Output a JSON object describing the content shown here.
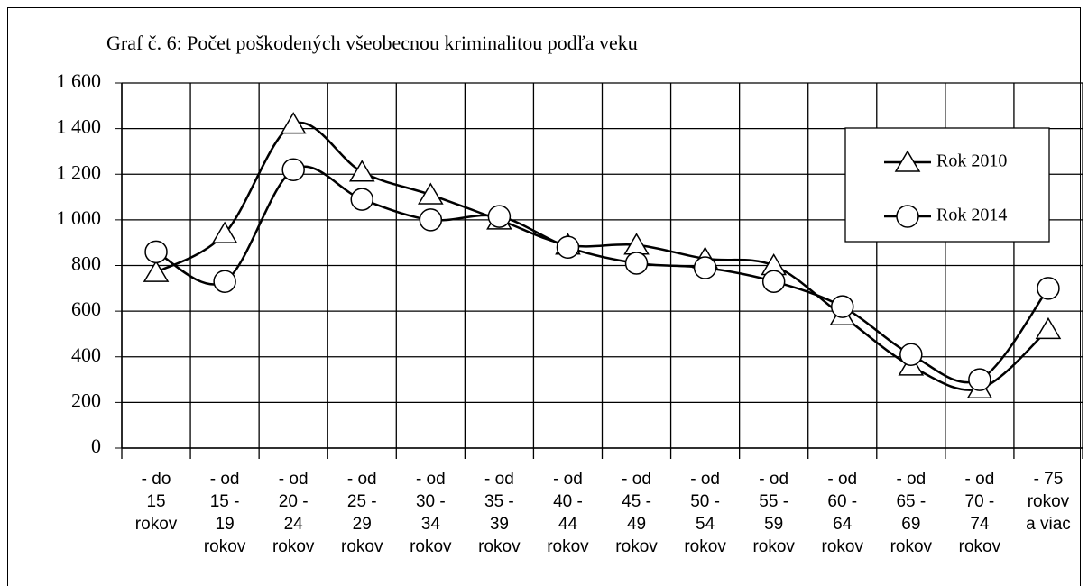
{
  "chart_data": {
    "type": "line",
    "title": "Graf č. 6: Počet poškodených všeobecnou  kriminalitou  podľa veku",
    "categories": [
      "- do\n15\nrokov",
      "- od\n15 -\n19\nrokov",
      "- od\n20 -\n24\nrokov",
      "- od\n25 -\n29\nrokov",
      "- od\n30 -\n34\nrokov",
      "- od\n35 -\n39\nrokov",
      "- od\n40 -\n44\nrokov",
      "- od\n45 -\n49\nrokov",
      "- od\n50 -\n54\nrokov",
      "- od\n55 -\n59\nrokov",
      "- od\n60 -\n64\nrokov",
      "- od\n65 -\n69\nrokov",
      "- od\n70 -\n74\nrokov",
      "- 75\nrokov\na viac"
    ],
    "series": [
      {
        "name": "Rok 2010",
        "color": "#000000",
        "marker": "triangle",
        "values": [
          770,
          940,
          1420,
          1210,
          1110,
          1000,
          890,
          890,
          830,
          800,
          580,
          360,
          260,
          520
        ]
      },
      {
        "name": "Rok 2014",
        "color": "#000000",
        "marker": "circle",
        "values": [
          860,
          730,
          1220,
          1090,
          1000,
          1015,
          880,
          810,
          790,
          730,
          620,
          410,
          300,
          700
        ]
      }
    ],
    "ylim": [
      0,
      1600
    ],
    "yticks": [
      0,
      200,
      400,
      600,
      800,
      {
        "value": 1000,
        "label": "1 000"
      },
      {
        "value": 1200,
        "label": "1 200"
      },
      {
        "value": 1400,
        "label": "1 400"
      },
      {
        "value": 1600,
        "label": "1 600"
      }
    ],
    "grid": true,
    "smooth": true,
    "legend": "upper right"
  }
}
